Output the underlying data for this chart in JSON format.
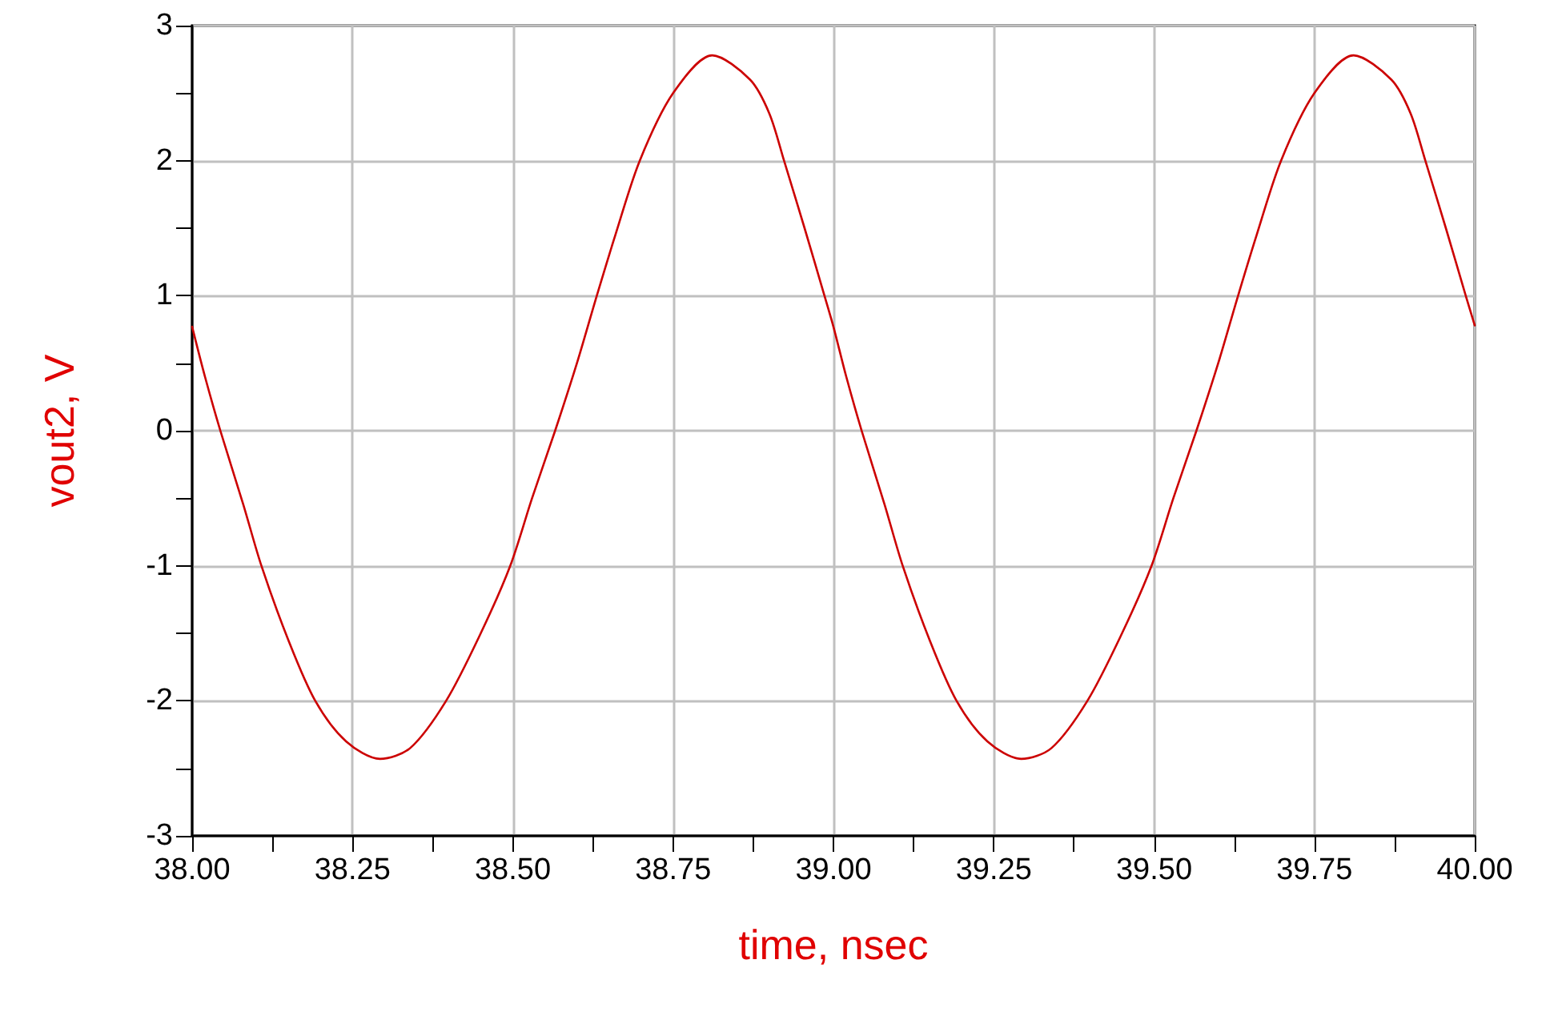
{
  "chart_data": {
    "type": "line",
    "xlabel": "time, nsec",
    "ylabel": "vout2, V",
    "xlim": [
      38,
      40
    ],
    "ylim": [
      -3,
      3
    ],
    "xticks": [
      {
        "value": 38,
        "label": "38.00"
      },
      {
        "value": 38.25,
        "label": "38.25"
      },
      {
        "value": 38.5,
        "label": "38.50"
      },
      {
        "value": 38.75,
        "label": "38.75"
      },
      {
        "value": 39,
        "label": "39.00"
      },
      {
        "value": 39.25,
        "label": "39.25"
      },
      {
        "value": 39.5,
        "label": "39.50"
      },
      {
        "value": 39.75,
        "label": "39.75"
      },
      {
        "value": 40,
        "label": "40.00"
      }
    ],
    "yticks": [
      -3,
      -2,
      -1,
      0,
      1,
      2,
      3
    ],
    "grid": true,
    "marker": "none",
    "line_style": "solid",
    "series": [
      {
        "color": "#cc0000",
        "x": [
          38,
          38.02,
          38.044,
          38.08,
          38.108,
          38.15,
          38.192,
          38.24,
          38.293,
          38.34,
          38.396,
          38.45,
          38.496,
          38.53,
          38.566,
          38.6,
          38.631,
          38.66,
          38.698,
          38.75,
          38.811,
          38.87,
          38.9,
          38.923,
          38.955,
          38.986,
          39,
          39.02,
          39.044,
          39.08,
          39.108,
          39.15,
          39.192,
          39.24,
          39.293,
          39.34,
          39.396,
          39.45,
          39.496,
          39.53,
          39.566,
          39.6,
          39.631,
          39.66,
          39.698,
          39.75,
          39.811,
          39.87,
          39.9,
          39.923,
          39.955,
          39.986,
          40
        ],
        "values": [
          0.77,
          0.4,
          0,
          -0.55,
          -1,
          -1.55,
          -2,
          -2.3,
          -2.43,
          -2.35,
          -2,
          -1.5,
          -1,
          -0.5,
          0,
          0.5,
          1,
          1.45,
          2,
          2.5,
          2.78,
          2.6,
          2.35,
          2,
          1.5,
          1,
          0.77,
          0.4,
          0,
          -0.55,
          -1,
          -1.55,
          -2,
          -2.3,
          -2.43,
          -2.35,
          -2,
          -1.5,
          -1,
          -0.5,
          0,
          0.5,
          1,
          1.45,
          2,
          2.5,
          2.78,
          2.6,
          2.35,
          2,
          1.5,
          1,
          0.78
        ]
      }
    ]
  }
}
